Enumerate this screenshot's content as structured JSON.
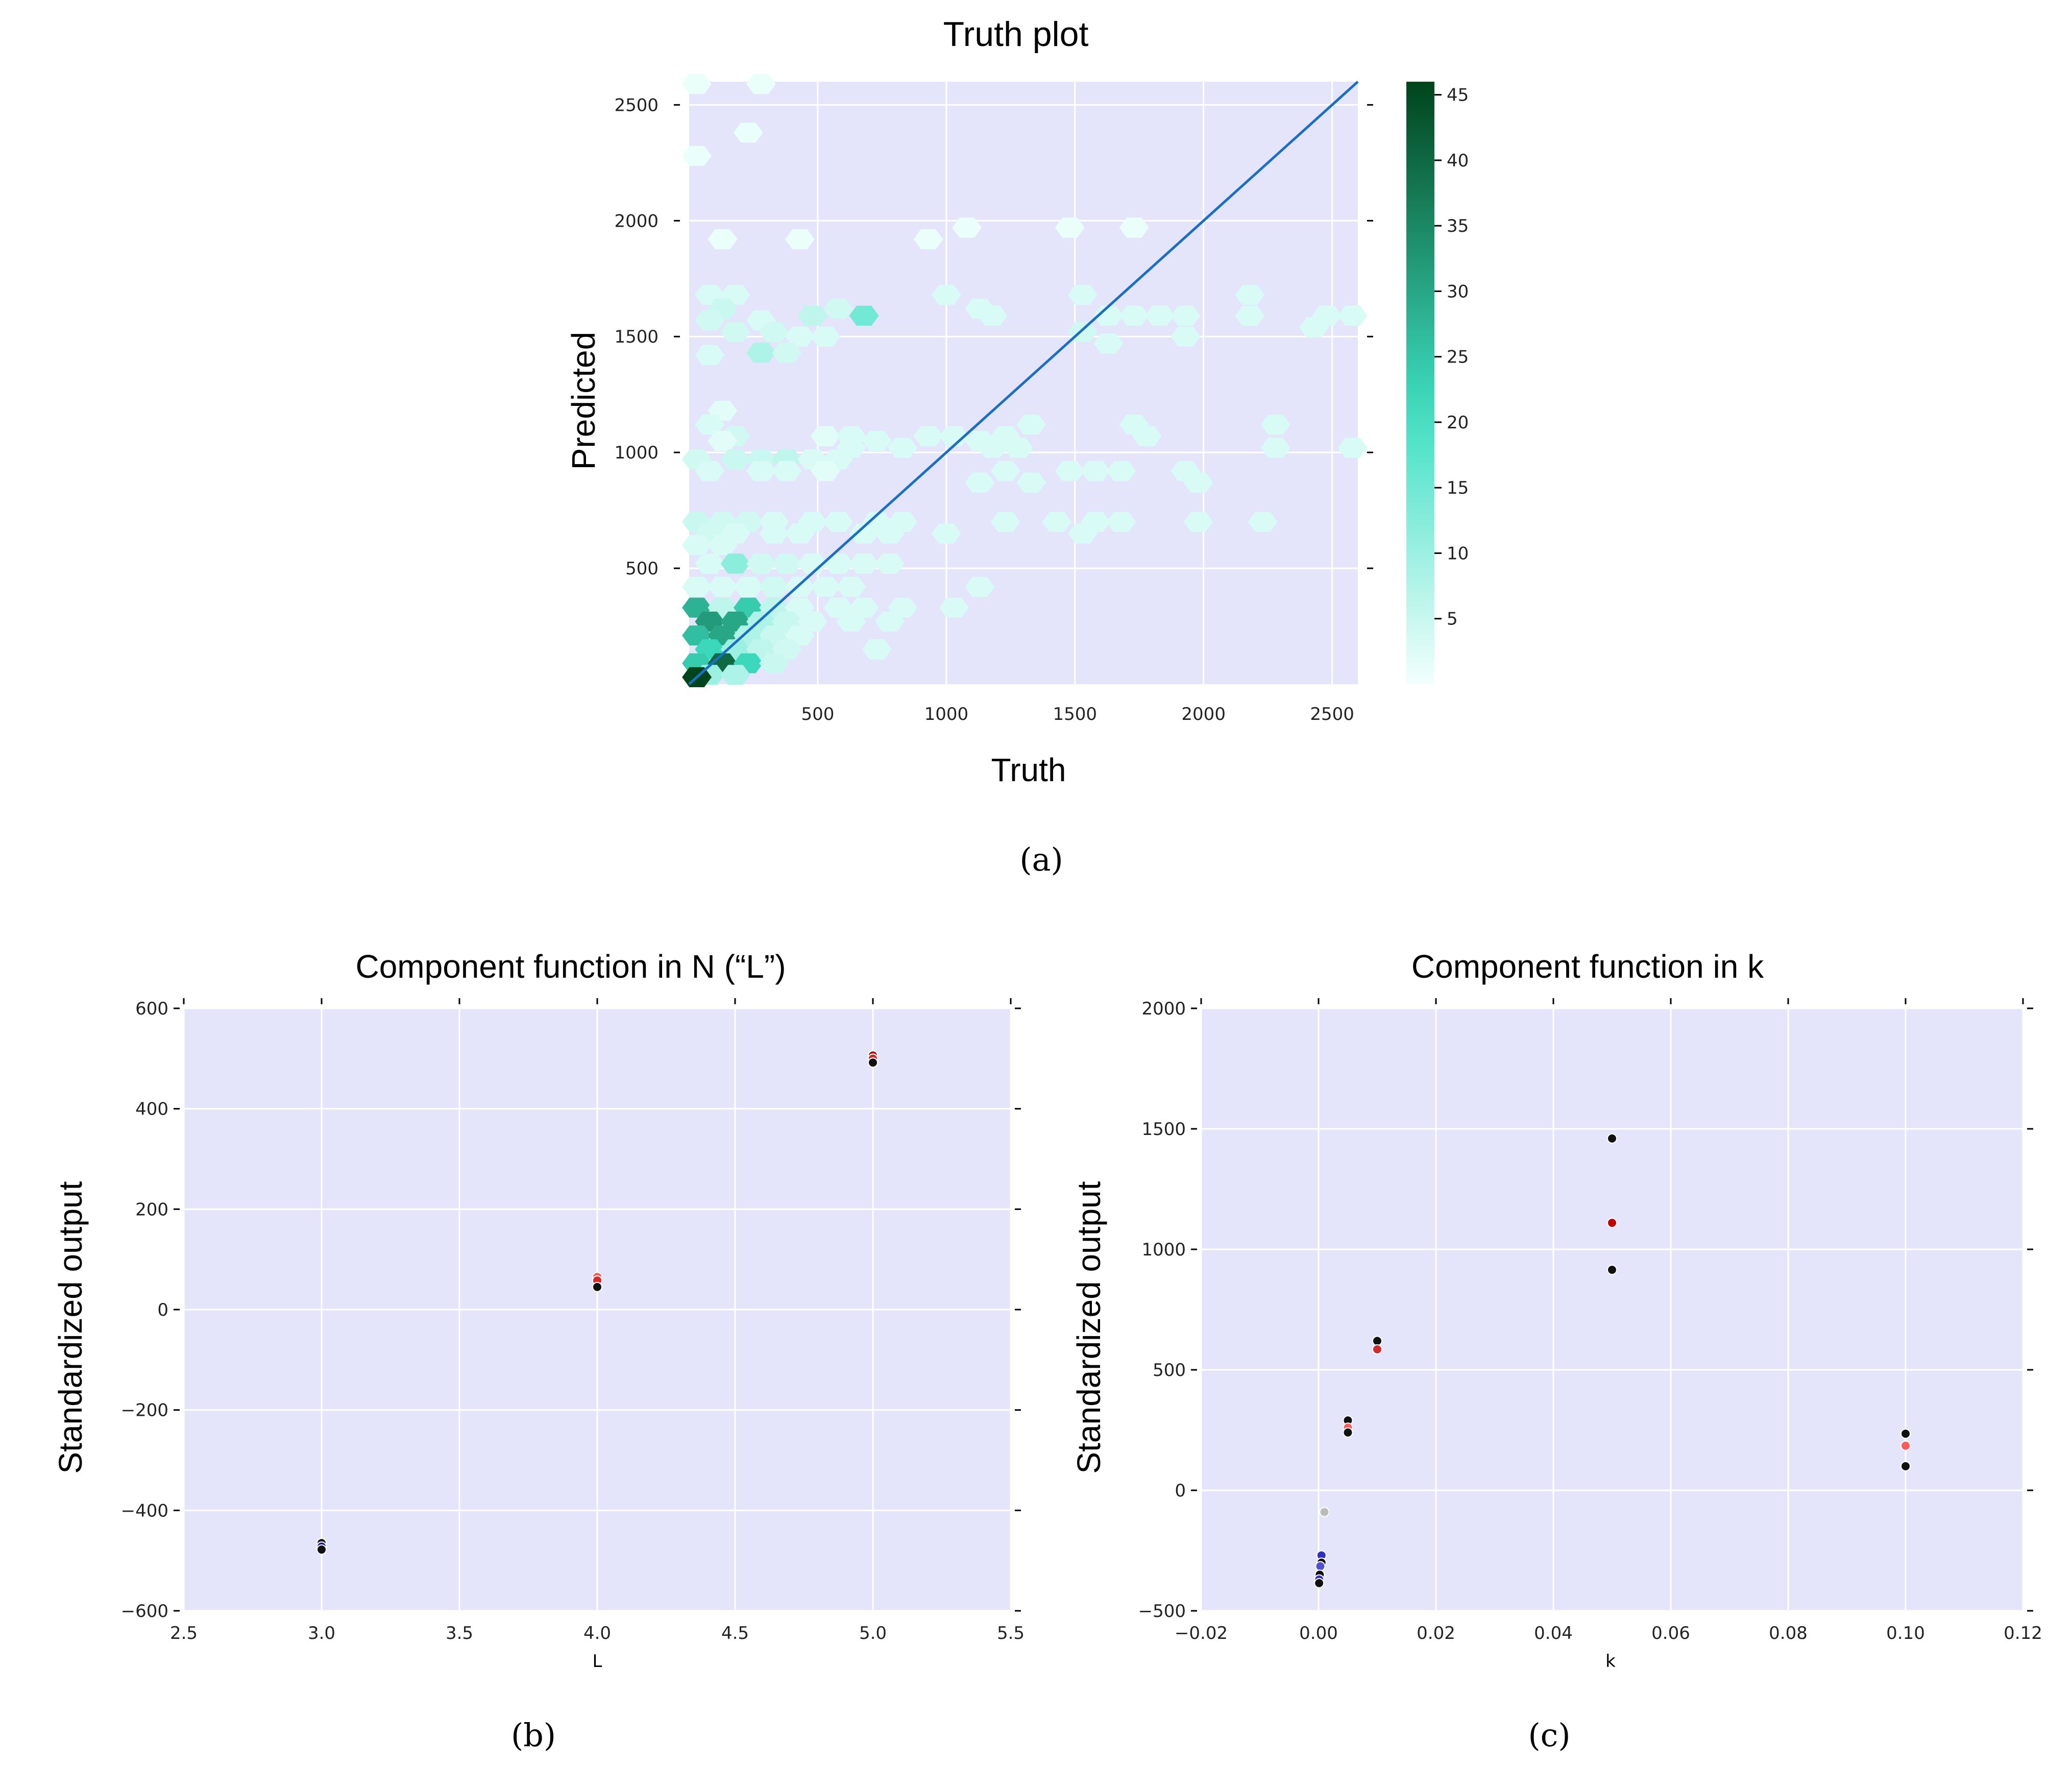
{
  "chart_data": [
    {
      "panel": "a",
      "type": "hexbin",
      "title": "Truth plot",
      "xlabel": "Truth",
      "ylabel": "Predicted",
      "xlim": [
        0,
        2600
      ],
      "ylim": [
        0,
        2600
      ],
      "xticks": [
        500,
        1000,
        1500,
        2000,
        2500
      ],
      "yticks": [
        500,
        1000,
        1500,
        2000,
        2500
      ],
      "identity_line": true,
      "colorbar": {
        "min": 0,
        "max": 46,
        "ticks": [
          5,
          10,
          15,
          20,
          25,
          30,
          35,
          40,
          45
        ]
      },
      "hexbins": [
        [
          30,
          2590,
          1
        ],
        [
          280,
          2590,
          1
        ],
        [
          230,
          2380,
          1
        ],
        [
          30,
          2280,
          1
        ],
        [
          130,
          1920,
          1
        ],
        [
          430,
          1920,
          1
        ],
        [
          930,
          1920,
          1
        ],
        [
          1080,
          1970,
          1
        ],
        [
          1480,
          1970,
          1
        ],
        [
          1730,
          1970,
          1
        ],
        [
          80,
          1680,
          3
        ],
        [
          180,
          1680,
          3
        ],
        [
          130,
          1620,
          5
        ],
        [
          80,
          1570,
          4
        ],
        [
          280,
          1570,
          3
        ],
        [
          480,
          1590,
          6
        ],
        [
          580,
          1620,
          4
        ],
        [
          680,
          1590,
          15
        ],
        [
          1000,
          1680,
          3
        ],
        [
          1130,
          1620,
          3
        ],
        [
          1180,
          1590,
          3
        ],
        [
          1530,
          1680,
          3
        ],
        [
          1630,
          1590,
          3
        ],
        [
          1730,
          1590,
          3
        ],
        [
          1830,
          1590,
          3
        ],
        [
          1930,
          1590,
          3
        ],
        [
          1530,
          1520,
          4
        ],
        [
          1630,
          1470,
          3
        ],
        [
          1930,
          1500,
          3
        ],
        [
          2180,
          1680,
          3
        ],
        [
          2180,
          1590,
          3
        ],
        [
          2480,
          1590,
          3
        ],
        [
          2580,
          1590,
          3
        ],
        [
          2430,
          1540,
          3
        ],
        [
          180,
          1520,
          4
        ],
        [
          330,
          1520,
          4
        ],
        [
          430,
          1500,
          3
        ],
        [
          530,
          1500,
          3
        ],
        [
          80,
          1420,
          3
        ],
        [
          280,
          1430,
          8
        ],
        [
          380,
          1430,
          4
        ],
        [
          130,
          1180,
          2
        ],
        [
          80,
          1120,
          3
        ],
        [
          180,
          1070,
          4
        ],
        [
          130,
          1050,
          2
        ],
        [
          30,
          970,
          4
        ],
        [
          180,
          970,
          5
        ],
        [
          280,
          970,
          5
        ],
        [
          380,
          970,
          6
        ],
        [
          480,
          970,
          3
        ],
        [
          580,
          970,
          3
        ],
        [
          80,
          920,
          3
        ],
        [
          280,
          920,
          3
        ],
        [
          380,
          920,
          3
        ],
        [
          530,
          920,
          2
        ],
        [
          530,
          1070,
          2
        ],
        [
          630,
          1070,
          3
        ],
        [
          730,
          1050,
          3
        ],
        [
          630,
          1020,
          3
        ],
        [
          830,
          1020,
          3
        ],
        [
          930,
          1070,
          3
        ],
        [
          1030,
          1070,
          3
        ],
        [
          1130,
          1050,
          3
        ],
        [
          1230,
          1070,
          3
        ],
        [
          1330,
          1120,
          3
        ],
        [
          1180,
          1020,
          3
        ],
        [
          1280,
          1020,
          3
        ],
        [
          1230,
          920,
          3
        ],
        [
          1330,
          870,
          3
        ],
        [
          1480,
          920,
          3
        ],
        [
          1580,
          920,
          3
        ],
        [
          1680,
          920,
          3
        ],
        [
          1980,
          870,
          3
        ],
        [
          1930,
          920,
          3
        ],
        [
          1730,
          1120,
          3
        ],
        [
          1780,
          1070,
          3
        ],
        [
          2280,
          1120,
          3
        ],
        [
          2280,
          1020,
          3
        ],
        [
          2580,
          1020,
          3
        ],
        [
          30,
          700,
          5
        ],
        [
          130,
          700,
          4
        ],
        [
          230,
          700,
          4
        ],
        [
          330,
          700,
          3
        ],
        [
          480,
          700,
          3
        ],
        [
          580,
          700,
          3
        ],
        [
          730,
          700,
          3
        ],
        [
          830,
          700,
          3
        ],
        [
          80,
          650,
          4
        ],
        [
          180,
          650,
          3
        ],
        [
          330,
          650,
          3
        ],
        [
          430,
          650,
          3
        ],
        [
          680,
          650,
          3
        ],
        [
          780,
          650,
          3
        ],
        [
          1000,
          650,
          3
        ],
        [
          1130,
          870,
          3
        ],
        [
          1230,
          700,
          3
        ],
        [
          1430,
          700,
          3
        ],
        [
          1580,
          700,
          3
        ],
        [
          1530,
          650,
          3
        ],
        [
          1680,
          700,
          3
        ],
        [
          1980,
          700,
          3
        ],
        [
          2230,
          700,
          3
        ],
        [
          30,
          600,
          3
        ],
        [
          130,
          600,
          3
        ],
        [
          80,
          520,
          3
        ],
        [
          180,
          520,
          12
        ],
        [
          280,
          520,
          4
        ],
        [
          380,
          520,
          4
        ],
        [
          480,
          520,
          3
        ],
        [
          580,
          520,
          3
        ],
        [
          680,
          520,
          3
        ],
        [
          780,
          520,
          3
        ],
        [
          30,
          420,
          3
        ],
        [
          130,
          420,
          3
        ],
        [
          230,
          420,
          3
        ],
        [
          330,
          420,
          4
        ],
        [
          430,
          420,
          3
        ],
        [
          530,
          420,
          3
        ],
        [
          630,
          420,
          3
        ],
        [
          1130,
          420,
          3
        ],
        [
          30,
          330,
          28
        ],
        [
          130,
          330,
          6
        ],
        [
          230,
          330,
          24
        ],
        [
          330,
          330,
          6
        ],
        [
          430,
          330,
          3
        ],
        [
          580,
          330,
          3
        ],
        [
          680,
          330,
          3
        ],
        [
          830,
          330,
          3
        ],
        [
          1030,
          330,
          3
        ],
        [
          80,
          270,
          32
        ],
        [
          180,
          270,
          30
        ],
        [
          280,
          270,
          8
        ],
        [
          380,
          270,
          5
        ],
        [
          480,
          270,
          3
        ],
        [
          630,
          270,
          3
        ],
        [
          780,
          270,
          3
        ],
        [
          30,
          210,
          26
        ],
        [
          130,
          210,
          30
        ],
        [
          230,
          210,
          8
        ],
        [
          330,
          210,
          5
        ],
        [
          430,
          210,
          3
        ],
        [
          80,
          150,
          22
        ],
        [
          180,
          150,
          10
        ],
        [
          280,
          150,
          6
        ],
        [
          380,
          150,
          4
        ],
        [
          730,
          150,
          3
        ],
        [
          30,
          90,
          24
        ],
        [
          130,
          90,
          40
        ],
        [
          230,
          90,
          22
        ],
        [
          330,
          90,
          5
        ],
        [
          80,
          40,
          10
        ],
        [
          30,
          30,
          46
        ],
        [
          180,
          40,
          8
        ]
      ]
    },
    {
      "panel": "b",
      "type": "scatter",
      "title": "Component function in N (“L”)",
      "xlabel": "L",
      "ylabel": "Standardized output",
      "xlim": [
        2.5,
        5.5
      ],
      "ylim": [
        -600,
        600
      ],
      "xticks": [
        "2.5",
        "3.0",
        "3.5",
        "4.0",
        "4.5",
        "5.0",
        "5.5"
      ],
      "yticks": [
        "−600",
        "−400",
        "−200",
        "0",
        "200",
        "400",
        "600"
      ],
      "xtick_values": [
        2.5,
        3.0,
        3.5,
        4.0,
        4.5,
        5.0,
        5.5
      ],
      "ytick_values": [
        -600,
        -400,
        -200,
        0,
        200,
        400,
        600
      ],
      "points": [
        {
          "x": 3.0,
          "y": -465,
          "color": "#1a1a1a"
        },
        {
          "x": 3.0,
          "y": -472,
          "color": "#1a1aa0"
        },
        {
          "x": 3.0,
          "y": -478,
          "color": "#111111"
        },
        {
          "x": 4.0,
          "y": 65,
          "color": "#ff5a5a"
        },
        {
          "x": 4.0,
          "y": 58,
          "color": "#d42a2a"
        },
        {
          "x": 4.0,
          "y": 45,
          "color": "#111111"
        },
        {
          "x": 5.0,
          "y": 506,
          "color": "#b00000"
        },
        {
          "x": 5.0,
          "y": 500,
          "color": "#c03030"
        },
        {
          "x": 5.0,
          "y": 492,
          "color": "#111111"
        }
      ]
    },
    {
      "panel": "c",
      "type": "scatter",
      "title": "Component function in k",
      "xlabel": "k",
      "ylabel": "Standardized output",
      "xlim": [
        -0.02,
        0.12
      ],
      "ylim": [
        -500,
        2000
      ],
      "xticks": [
        "−0.02",
        "0.00",
        "0.02",
        "0.04",
        "0.06",
        "0.08",
        "0.10",
        "0.12"
      ],
      "yticks": [
        "−500",
        "0",
        "500",
        "1000",
        "1500",
        "2000"
      ],
      "xtick_values": [
        -0.02,
        0.0,
        0.02,
        0.04,
        0.06,
        0.08,
        0.1,
        0.12
      ],
      "ytick_values": [
        -500,
        0,
        500,
        1000,
        1500,
        2000
      ],
      "points": [
        {
          "x": 0.001,
          "y": -90,
          "color": "#bbbbbb"
        },
        {
          "x": 0.0005,
          "y": -270,
          "color": "#3030c0"
        },
        {
          "x": 0.0005,
          "y": -300,
          "color": "#111111"
        },
        {
          "x": 0.0003,
          "y": -315,
          "color": "#5050d0"
        },
        {
          "x": 0.0002,
          "y": -350,
          "color": "#111111"
        },
        {
          "x": 0.0001,
          "y": -370,
          "color": "#3030c0"
        },
        {
          "x": 0.0001,
          "y": -385,
          "color": "#111111"
        },
        {
          "x": 0.005,
          "y": 290,
          "color": "#111111"
        },
        {
          "x": 0.005,
          "y": 260,
          "color": "#ff5a5a"
        },
        {
          "x": 0.005,
          "y": 240,
          "color": "#111111"
        },
        {
          "x": 0.01,
          "y": 620,
          "color": "#111111"
        },
        {
          "x": 0.01,
          "y": 585,
          "color": "#d42a2a"
        },
        {
          "x": 0.05,
          "y": 1460,
          "color": "#111111"
        },
        {
          "x": 0.05,
          "y": 1110,
          "color": "#c00000"
        },
        {
          "x": 0.05,
          "y": 915,
          "color": "#111111"
        },
        {
          "x": 0.1,
          "y": 235,
          "color": "#111111"
        },
        {
          "x": 0.1,
          "y": 185,
          "color": "#ff5a5a"
        },
        {
          "x": 0.1,
          "y": 100,
          "color": "#111111"
        }
      ]
    }
  ],
  "captions": {
    "a": "(a)",
    "b": "(b)",
    "c": "(c)"
  },
  "colors": {
    "plot_background": "#e4e4fa",
    "grid": "#ffffff",
    "identity_line": "#1a6fc4",
    "colormap_low": "#f3fffd",
    "colormap_mid": "#3fe0c4",
    "colormap_high": "#00441b"
  }
}
